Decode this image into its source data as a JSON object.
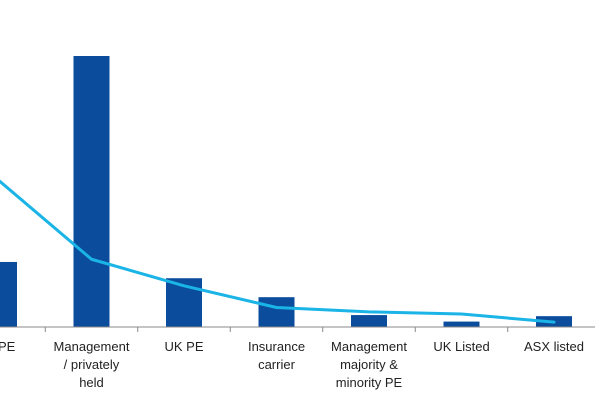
{
  "chart_data": {
    "type": "bar",
    "categories": [
      [
        "PE"
      ],
      [
        "Management",
        "/ privately",
        "held"
      ],
      [
        "UK PE"
      ],
      [
        "Insurance",
        "carrier"
      ],
      [
        "Management",
        "majority &",
        "minority PE"
      ],
      [
        "UK Listed"
      ],
      [
        "ASX listed"
      ]
    ],
    "series": [
      {
        "type": "bar",
        "values": [
          12,
          50,
          9,
          5.5,
          2.2,
          1,
          2
        ]
      },
      {
        "type": "line",
        "values": [
          27,
          12.5,
          7.6,
          3.6,
          2.8,
          2.4,
          0.9
        ]
      }
    ],
    "ylim": [
      0,
      50
    ],
    "xlabel": "",
    "ylabel": ""
  },
  "colors": {
    "bar": "#0b4c9c",
    "line": "#1ab4e6",
    "axis": "#888888",
    "text": "#222222"
  }
}
